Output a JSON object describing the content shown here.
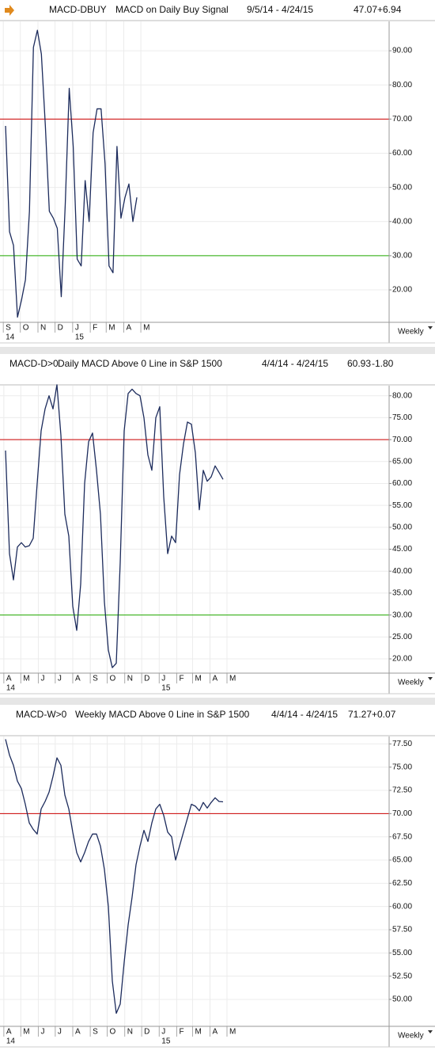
{
  "chart_data": [
    {
      "type": "line",
      "symbol": "MACD-DBUY",
      "title": "MACD on Daily Buy Signal",
      "date_range": "9/5/14 - 4/24/15",
      "last_value": "47.07",
      "change": "+6.94",
      "interval_label": "Weekly",
      "color": "#1c2b5c",
      "grid": true,
      "values": [
        68,
        37,
        33,
        12,
        17,
        23,
        43,
        91,
        96,
        89,
        68,
        43,
        41,
        38,
        18,
        45,
        79,
        62,
        29,
        27,
        52,
        40,
        66,
        73,
        73,
        57,
        27,
        25,
        62,
        41,
        47,
        51,
        40,
        47.07
      ],
      "xlim": [
        -1.4,
        96.4
      ],
      "xticks": [
        {
          "value": -0.57,
          "label": "S"
        },
        {
          "value": 3.71,
          "label": "O"
        },
        {
          "value": 8.14,
          "label": "N"
        },
        {
          "value": 12.43,
          "label": "D"
        },
        {
          "value": 16.86,
          "label": "J"
        },
        {
          "value": 21.29,
          "label": "F"
        },
        {
          "value": 25.29,
          "label": "M"
        },
        {
          "value": 29.71,
          "label": "A"
        },
        {
          "value": 34,
          "label": "M"
        }
      ],
      "year_ticks": [
        {
          "value": -0.57,
          "label": "14"
        },
        {
          "value": 16.86,
          "label": "15"
        }
      ],
      "ylim": [
        10.5,
        98.6
      ],
      "yticks": [
        {
          "value": 20,
          "label": "20.00"
        },
        {
          "value": 30,
          "label": "30.00"
        },
        {
          "value": 40,
          "label": "40.00"
        },
        {
          "value": 50,
          "label": "50.00"
        },
        {
          "value": 60,
          "label": "60.00"
        },
        {
          "value": 70,
          "label": "70.00"
        },
        {
          "value": 80,
          "label": "80.00"
        },
        {
          "value": 90,
          "label": "90.00"
        }
      ],
      "reference_lines": [
        {
          "value": 70,
          "color": "#cc0000"
        },
        {
          "value": 30,
          "color": "#22aa00"
        }
      ]
    },
    {
      "type": "line",
      "symbol": "MACD-D>0",
      "title": "Daily MACD Above 0 Line in S&P 1500",
      "date_range": "4/4/14 - 4/24/15",
      "last_value": "60.93",
      "change": "-1.80",
      "interval_label": "Weekly",
      "color": "#1c2b5c",
      "grid": true,
      "values": [
        67.5,
        44,
        38,
        45.5,
        46.5,
        45.5,
        45.8,
        47.5,
        60,
        72,
        77,
        80,
        77,
        82.5,
        71,
        53,
        48,
        32,
        26.5,
        37,
        60,
        69.5,
        71.5,
        63,
        53,
        33,
        22,
        18,
        19,
        42,
        72,
        80.5,
        81.5,
        80.5,
        80,
        75,
        66.5,
        63,
        75,
        77.5,
        57,
        44,
        48,
        46.5,
        62,
        69,
        74,
        73.5,
        67,
        54,
        63,
        60.5,
        61.5,
        64,
        62.5,
        60.93
      ],
      "xlim": [
        -1.4,
        97
      ],
      "xticks": [
        {
          "value": -0.43,
          "label": "A"
        },
        {
          "value": 3.86,
          "label": "M"
        },
        {
          "value": 8.29,
          "label": "J"
        },
        {
          "value": 12.57,
          "label": "J"
        },
        {
          "value": 17,
          "label": "A"
        },
        {
          "value": 21.43,
          "label": "S"
        },
        {
          "value": 25.71,
          "label": "O"
        },
        {
          "value": 30.14,
          "label": "N"
        },
        {
          "value": 34.43,
          "label": "D"
        },
        {
          "value": 38.86,
          "label": "J"
        },
        {
          "value": 43.29,
          "label": "F"
        },
        {
          "value": 47.29,
          "label": "M"
        },
        {
          "value": 51.71,
          "label": "A"
        },
        {
          "value": 56,
          "label": "M"
        }
      ],
      "year_ticks": [
        {
          "value": -0.43,
          "label": "14"
        },
        {
          "value": 38.86,
          "label": "15"
        }
      ],
      "ylim": [
        16.75,
        82.3
      ],
      "yticks": [
        {
          "value": 20,
          "label": "20.00"
        },
        {
          "value": 25,
          "label": "25.00"
        },
        {
          "value": 30,
          "label": "30.00"
        },
        {
          "value": 35,
          "label": "35.00"
        },
        {
          "value": 40,
          "label": "40.00"
        },
        {
          "value": 45,
          "label": "45.00"
        },
        {
          "value": 50,
          "label": "50.00"
        },
        {
          "value": 55,
          "label": "55.00"
        },
        {
          "value": 60,
          "label": "60.00"
        },
        {
          "value": 65,
          "label": "65.00"
        },
        {
          "value": 70,
          "label": "70.00"
        },
        {
          "value": 75,
          "label": "75.00"
        },
        {
          "value": 80,
          "label": "80.00"
        }
      ],
      "reference_lines": [
        {
          "value": 70,
          "color": "#cc0000"
        },
        {
          "value": 30,
          "color": "#22aa00"
        }
      ]
    },
    {
      "type": "line",
      "symbol": "MACD-W>0",
      "title": "Weekly MACD Above 0 Line in S&P 1500",
      "date_range": "4/4/14 - 4/24/15",
      "last_value": "71.27",
      "change": "+0.07",
      "interval_label": "Weekly",
      "color": "#1c2b5c",
      "grid": true,
      "values": [
        78,
        76.3,
        75.2,
        73.5,
        72.7,
        71,
        69,
        68.3,
        67.8,
        70.5,
        71.3,
        72.3,
        74,
        76,
        75.2,
        72,
        70.5,
        68,
        65.8,
        64.8,
        65.8,
        67,
        67.8,
        67.8,
        66.5,
        64,
        60,
        52,
        48.5,
        49.5,
        54,
        58,
        61,
        64.5,
        66.5,
        68.2,
        67,
        69,
        70.5,
        71,
        69.8,
        68,
        67.5,
        65,
        66.5,
        68,
        69.5,
        71,
        70.8,
        70.3,
        71.2,
        70.6,
        71.2,
        71.7,
        71.3,
        71.27
      ],
      "xlim": [
        -1.4,
        97
      ],
      "xticks": [
        {
          "value": -0.43,
          "label": "A"
        },
        {
          "value": 3.86,
          "label": "M"
        },
        {
          "value": 8.29,
          "label": "J"
        },
        {
          "value": 12.57,
          "label": "J"
        },
        {
          "value": 17,
          "label": "A"
        },
        {
          "value": 21.43,
          "label": "S"
        },
        {
          "value": 25.71,
          "label": "O"
        },
        {
          "value": 30.14,
          "label": "N"
        },
        {
          "value": 34.43,
          "label": "D"
        },
        {
          "value": 38.86,
          "label": "J"
        },
        {
          "value": 43.29,
          "label": "F"
        },
        {
          "value": 47.29,
          "label": "M"
        },
        {
          "value": 51.71,
          "label": "A"
        },
        {
          "value": 56,
          "label": "M"
        }
      ],
      "year_ticks": [
        {
          "value": -0.43,
          "label": "14"
        },
        {
          "value": 38.86,
          "label": "15"
        }
      ],
      "ylim": [
        47.1,
        78.3
      ],
      "yticks": [
        {
          "value": 50,
          "label": "50.00"
        },
        {
          "value": 52.5,
          "label": "52.50"
        },
        {
          "value": 55,
          "label": "55.00"
        },
        {
          "value": 57.5,
          "label": "57.50"
        },
        {
          "value": 60,
          "label": "60.00"
        },
        {
          "value": 62.5,
          "label": "62.50"
        },
        {
          "value": 65,
          "label": "65.00"
        },
        {
          "value": 67.5,
          "label": "67.50"
        },
        {
          "value": 70,
          "label": "70.00"
        },
        {
          "value": 72.5,
          "label": "72.50"
        },
        {
          "value": 75,
          "label": "75.00"
        },
        {
          "value": 77.5,
          "label": "77.50"
        }
      ],
      "reference_lines": [
        {
          "value": 70,
          "color": "#cc0000"
        }
      ]
    }
  ]
}
